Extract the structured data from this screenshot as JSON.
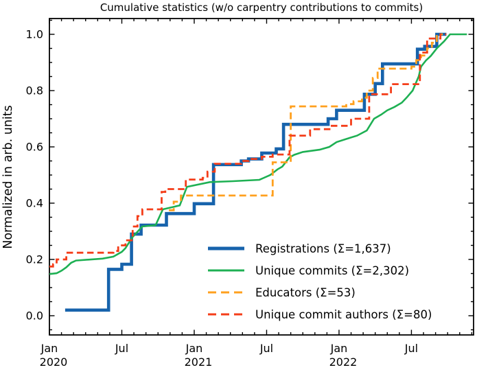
{
  "chart_data": {
    "type": "line",
    "title": "Cumulative statistics (w/o carpentry contributions to commits)",
    "ylabel": "Normalized in arb. units",
    "xlabel": "",
    "x_unit": "months since 2020-01",
    "xlim_months": [
      0,
      35.15
    ],
    "ylim": [
      -0.068,
      1.056
    ],
    "grid": false,
    "legend_position": "lower right (inside, no frame)",
    "axes": {
      "y_major_ticks": [
        0.0,
        0.2,
        0.4,
        0.6,
        0.8,
        1.0
      ],
      "y_major_labels": [
        "0.0",
        "0.2",
        "0.4",
        "0.6",
        "0.8",
        "1.0"
      ],
      "y_minor_step": 0.05,
      "x_major_ticks": [
        {
          "month": 0,
          "label": "Jan",
          "year": "2020"
        },
        {
          "month": 6,
          "label": "Jul",
          "year": ""
        },
        {
          "month": 12,
          "label": "Jan",
          "year": "2021"
        },
        {
          "month": 18,
          "label": "Jul",
          "year": ""
        },
        {
          "month": 24,
          "label": "Jan",
          "year": "2022"
        },
        {
          "month": 30,
          "label": "Jul",
          "year": ""
        }
      ],
      "x_minor_step_months": 1
    },
    "series": [
      {
        "key": "registrations",
        "label": "Registrations  (Σ=1,637)",
        "total": 1637,
        "color": "#1763ac",
        "style": "solid",
        "width": 4.6,
        "interp": "step",
        "points": [
          [
            1.3,
            0.02
          ],
          [
            4.9,
            0.165
          ],
          [
            6.0,
            0.183
          ],
          [
            6.8,
            0.29
          ],
          [
            7.6,
            0.322
          ],
          [
            9.7,
            0.363
          ],
          [
            12.0,
            0.398
          ],
          [
            13.6,
            0.537
          ],
          [
            15.9,
            0.55
          ],
          [
            16.5,
            0.557
          ],
          [
            17.6,
            0.578
          ],
          [
            18.8,
            0.593
          ],
          [
            19.4,
            0.68
          ],
          [
            23.1,
            0.7
          ],
          [
            23.8,
            0.73
          ],
          [
            26.1,
            0.787
          ],
          [
            27.0,
            0.825
          ],
          [
            27.6,
            0.895
          ],
          [
            30.5,
            0.947
          ],
          [
            31.1,
            0.957
          ],
          [
            32.1,
            1.0
          ],
          [
            32.9,
            1.0
          ]
        ]
      },
      {
        "key": "unique-commits",
        "label": "Unique commits (Σ=2,302)",
        "total": 2302,
        "color": "#1eb053",
        "style": "solid",
        "width": 2.6,
        "interp": "linear",
        "points": [
          [
            0,
            0.148
          ],
          [
            0.6,
            0.151
          ],
          [
            1.0,
            0.16
          ],
          [
            1.4,
            0.172
          ],
          [
            1.8,
            0.188
          ],
          [
            2.2,
            0.196
          ],
          [
            4.4,
            0.203
          ],
          [
            5.3,
            0.21
          ],
          [
            6.0,
            0.227
          ],
          [
            6.3,
            0.24
          ],
          [
            6.9,
            0.28
          ],
          [
            7.7,
            0.317
          ],
          [
            8.8,
            0.322
          ],
          [
            9.4,
            0.378
          ],
          [
            10.8,
            0.392
          ],
          [
            11.4,
            0.458
          ],
          [
            13.3,
            0.475
          ],
          [
            15.2,
            0.478
          ],
          [
            17.4,
            0.483
          ],
          [
            18.3,
            0.5
          ],
          [
            18.9,
            0.52
          ],
          [
            19.3,
            0.53
          ],
          [
            19.9,
            0.563
          ],
          [
            20.3,
            0.572
          ],
          [
            21.0,
            0.582
          ],
          [
            22.4,
            0.59
          ],
          [
            23.2,
            0.6
          ],
          [
            23.8,
            0.617
          ],
          [
            24.6,
            0.628
          ],
          [
            25.5,
            0.64
          ],
          [
            26.3,
            0.658
          ],
          [
            26.9,
            0.7
          ],
          [
            27.5,
            0.715
          ],
          [
            28.0,
            0.73
          ],
          [
            28.6,
            0.742
          ],
          [
            29.2,
            0.757
          ],
          [
            29.6,
            0.775
          ],
          [
            30.1,
            0.8
          ],
          [
            30.6,
            0.85
          ],
          [
            30.8,
            0.885
          ],
          [
            31.2,
            0.907
          ],
          [
            31.6,
            0.923
          ],
          [
            32.1,
            0.95
          ],
          [
            32.7,
            0.975
          ],
          [
            33.2,
            1.0
          ],
          [
            34.6,
            1.0
          ]
        ]
      },
      {
        "key": "educators",
        "label": "Educators (Σ=53)",
        "total": 53,
        "color": "#ffa01e",
        "style": "dashed",
        "width": 2.8,
        "interp": "step",
        "points": [
          [
            9.9,
            0.375
          ],
          [
            10.3,
            0.405
          ],
          [
            10.9,
            0.427
          ],
          [
            18.5,
            0.545
          ],
          [
            20.0,
            0.744
          ],
          [
            24.6,
            0.752
          ],
          [
            25.2,
            0.762
          ],
          [
            25.9,
            0.775
          ],
          [
            26.3,
            0.8
          ],
          [
            26.8,
            0.845
          ],
          [
            27.2,
            0.878
          ],
          [
            30.0,
            0.885
          ],
          [
            30.4,
            0.908
          ],
          [
            30.8,
            0.925
          ],
          [
            31.3,
            0.95
          ],
          [
            31.7,
            0.97
          ],
          [
            32.1,
            1.0
          ],
          [
            32.6,
            1.0
          ]
        ]
      },
      {
        "key": "unique-commit-authors",
        "label": "Unique commit authors (Σ=80)",
        "total": 80,
        "color": "#f43d19",
        "style": "dashed",
        "width": 2.8,
        "interp": "step",
        "points": [
          [
            0,
            0.175
          ],
          [
            0.3,
            0.183
          ],
          [
            0.6,
            0.2
          ],
          [
            1.4,
            0.224
          ],
          [
            5.3,
            0.23
          ],
          [
            5.7,
            0.25
          ],
          [
            6.3,
            0.268
          ],
          [
            6.9,
            0.317
          ],
          [
            7.3,
            0.354
          ],
          [
            7.7,
            0.378
          ],
          [
            9.3,
            0.44
          ],
          [
            9.6,
            0.45
          ],
          [
            11.3,
            0.484
          ],
          [
            12.7,
            0.49
          ],
          [
            13.1,
            0.512
          ],
          [
            13.7,
            0.54
          ],
          [
            15.9,
            0.55
          ],
          [
            16.5,
            0.557
          ],
          [
            17.6,
            0.565
          ],
          [
            18.5,
            0.573
          ],
          [
            19.9,
            0.64
          ],
          [
            21.6,
            0.663
          ],
          [
            23.3,
            0.675
          ],
          [
            25.0,
            0.7
          ],
          [
            26.5,
            0.787
          ],
          [
            28.3,
            0.823
          ],
          [
            30.7,
            0.935
          ],
          [
            31.3,
            0.985
          ],
          [
            32.4,
            1.0
          ],
          [
            32.9,
            1.0
          ]
        ]
      }
    ]
  }
}
